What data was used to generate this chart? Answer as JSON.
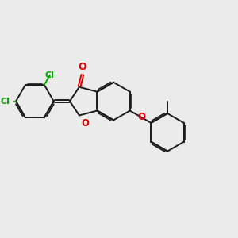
{
  "bg_color": "#ebebeb",
  "bond_color": "#1a1a1a",
  "O_color": "#e00000",
  "Cl_color": "#00aa00",
  "bond_lw": 1.4,
  "inner_lw": 1.2,
  "dbo": 0.055,
  "figsize": [
    3.0,
    3.0
  ],
  "dpi": 100,
  "xlim": [
    0,
    10
  ],
  "ylim": [
    0,
    10
  ]
}
